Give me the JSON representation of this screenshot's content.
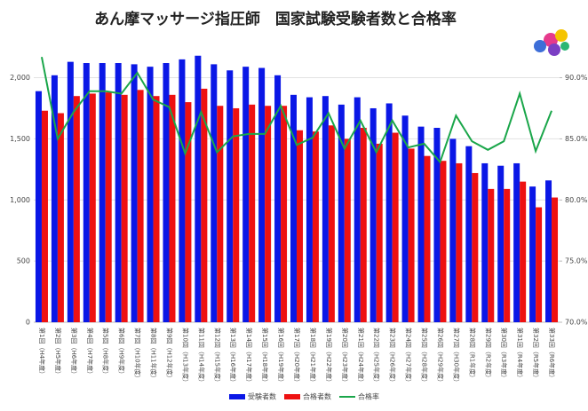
{
  "chart_data": {
    "type": "bar_line",
    "title": "あん摩マッサージ指圧師　国家試験受験者数と合格率",
    "categories": [
      "第1回（H4年度）",
      "第2回（H5年度）",
      "第3回（H6年度）",
      "第4回（H7年度）",
      "第5回（H8年度）",
      "第6回（H9年度）",
      "第7回（H10年度）",
      "第8回（H11年度）",
      "第9回（H12年度）",
      "第10回（H13年度）",
      "第11回（H14年度）",
      "第12回（H15年度）",
      "第13回（H16年度）",
      "第14回（H17年度）",
      "第15回（H18年度）",
      "第16回（H19年度）",
      "第17回（H20年度）",
      "第18回（H21年度）",
      "第19回（H22年度）",
      "第20回（H23年度）",
      "第21回（H24年度）",
      "第22回（H25年度）",
      "第23回（H26年度）",
      "第24回（H27年度）",
      "第25回（H28年度）",
      "第26回（H29年度）",
      "第27回（H30年度）",
      "第28回（R1年度）",
      "第29回（R2年度）",
      "第30回（R3年度）",
      "第31回（R4年度）",
      "第32回（R5年度）",
      "第33回（R6年度）"
    ],
    "series": [
      {
        "name": "受験者数",
        "color": "#0a17e6",
        "kind": "bar",
        "values": [
          1890,
          2020,
          2130,
          2120,
          2120,
          2120,
          2110,
          2090,
          2120,
          2150,
          2180,
          2110,
          2060,
          2090,
          2080,
          2020,
          1860,
          1840,
          1850,
          1780,
          1840,
          1750,
          1790,
          1690,
          1600,
          1590,
          1500,
          1440,
          1300,
          1280,
          1300,
          1110,
          1160
        ]
      },
      {
        "name": "合格者数",
        "color": "#ee1111",
        "kind": "bar",
        "values": [
          1730,
          1710,
          1850,
          1870,
          1880,
          1860,
          1900,
          1850,
          1860,
          1800,
          1910,
          1770,
          1750,
          1780,
          1770,
          1770,
          1570,
          1560,
          1610,
          1500,
          1590,
          1460,
          1550,
          1420,
          1360,
          1320,
          1300,
          1220,
          1090,
          1090,
          1150,
          940,
          1020
        ]
      },
      {
        "name": "合格率",
        "color": "#1aa64a",
        "kind": "line",
        "axis": "y2",
        "values": [
          91.7,
          85.0,
          87.2,
          88.9,
          88.9,
          88.7,
          90.4,
          88.2,
          87.6,
          83.8,
          87.2,
          83.9,
          85.2,
          85.4,
          85.4,
          87.7,
          84.5,
          85.1,
          87.1,
          84.2,
          86.5,
          83.9,
          86.5,
          84.3,
          84.6,
          83.1,
          86.9,
          84.8,
          84.1,
          84.8,
          88.7,
          84.0,
          87.3
        ]
      }
    ],
    "ylim": [
      0,
      2200
    ],
    "yticks": [
      0,
      500,
      {
        "value": 1000,
        "label": "1,000"
      },
      {
        "value": 1500,
        "label": "1,500"
      },
      {
        "value": 2000,
        "label": "2,000"
      }
    ],
    "y2lim": [
      70,
      92
    ],
    "y2ticks": [
      {
        "value": 70,
        "label": "70.0%"
      },
      {
        "value": 75,
        "label": "75.0%"
      },
      {
        "value": 80,
        "label": "80.0%"
      },
      {
        "value": 85,
        "label": "85.0%"
      },
      {
        "value": 90,
        "label": "90.0%"
      }
    ],
    "grid": true,
    "legend": "bottom"
  }
}
